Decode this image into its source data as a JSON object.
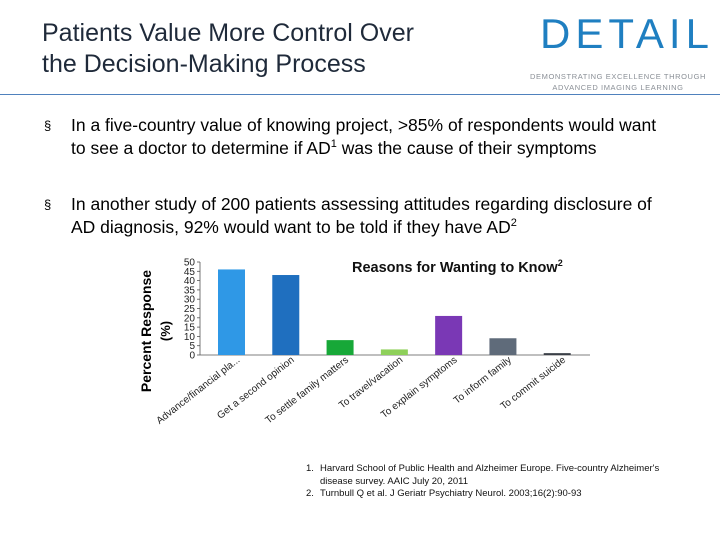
{
  "slide": {
    "title_line1": "Patients Value More Control Over",
    "title_line2": "the Decision-Making Process"
  },
  "logo": {
    "word": "DETAIL",
    "line1": "DEMONSTRATING EXCELLENCE THROUGH",
    "line2": "ADVANCED IMAGING LEARNING",
    "color": "#1f7fc1"
  },
  "bullets": [
    {
      "mark": "§",
      "text_a": "In a five-country value of knowing project, >85% of respondents would want to see a doctor to determine if AD",
      "sup": "1",
      "text_b": " was the cause of their symptoms"
    },
    {
      "mark": "§",
      "text_a": "In another study of 200 patients assessing attitudes regarding disclosure of AD  diagnosis, 92% would want to be told if they have AD",
      "sup": "2",
      "text_b": ""
    }
  ],
  "chart_data": {
    "type": "bar",
    "title": "Reasons for Wanting to Know",
    "title_sup": "2",
    "ylabel_line1": "Percent Response",
    "ylabel_line2": "(%)",
    "ylim": [
      0,
      50
    ],
    "yticks": [
      0,
      5,
      10,
      15,
      20,
      25,
      30,
      35,
      40,
      45,
      50
    ],
    "grid": false,
    "categories": [
      "Advance/financial pla...",
      "Get a second opinion",
      "To settle family matters",
      "To travel/vacation",
      "To explain symptoms",
      "To inform family",
      "To commit suicide"
    ],
    "values": [
      46,
      43,
      8,
      3,
      21,
      9,
      1
    ],
    "colors": [
      "#2f98e6",
      "#1f6fbf",
      "#17a838",
      "#8ed05a",
      "#7a38b5",
      "#5f6b7a",
      "#3a3f47"
    ]
  },
  "footnotes": [
    {
      "num": "1.",
      "text": "Harvard School of Public Health and Alzheimer Europe. Five-country Alzheimer's disease survey. AAIC July 20, 2011"
    },
    {
      "num": "2.",
      "text": "Turnbull Q et al. J Geriatr Psychiatry Neurol. 2003;16(2):90-93"
    }
  ]
}
